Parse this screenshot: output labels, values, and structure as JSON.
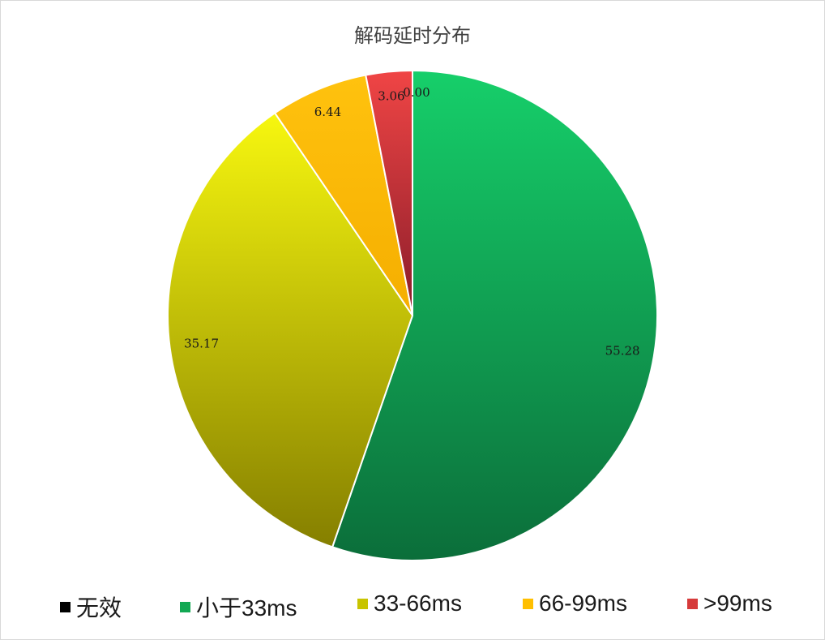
{
  "chart_data": {
    "type": "pie",
    "title": "解码延时分布",
    "categories": [
      "无效",
      "小于33ms",
      "33-66ms",
      "66-99ms",
      ">99ms"
    ],
    "values": [
      0.0,
      55.28,
      35.17,
      6.44,
      3.06
    ],
    "labels": [
      "0.00",
      "55.28",
      "35.17",
      "6.44",
      "3.06"
    ],
    "colors": [
      "#000000",
      "#12a853",
      "#c8c400",
      "#ffbf00",
      "#d63a3a"
    ],
    "gradients": [
      [
        "#000000",
        "#000000"
      ],
      [
        "#16cf6a",
        "#0b6e3a"
      ],
      [
        "#f7f70f",
        "#857f00"
      ],
      [
        "#ffc20e",
        "#f5ae00"
      ],
      [
        "#f04545",
        "#8a1d2a"
      ]
    ],
    "legend_position": "bottom"
  }
}
